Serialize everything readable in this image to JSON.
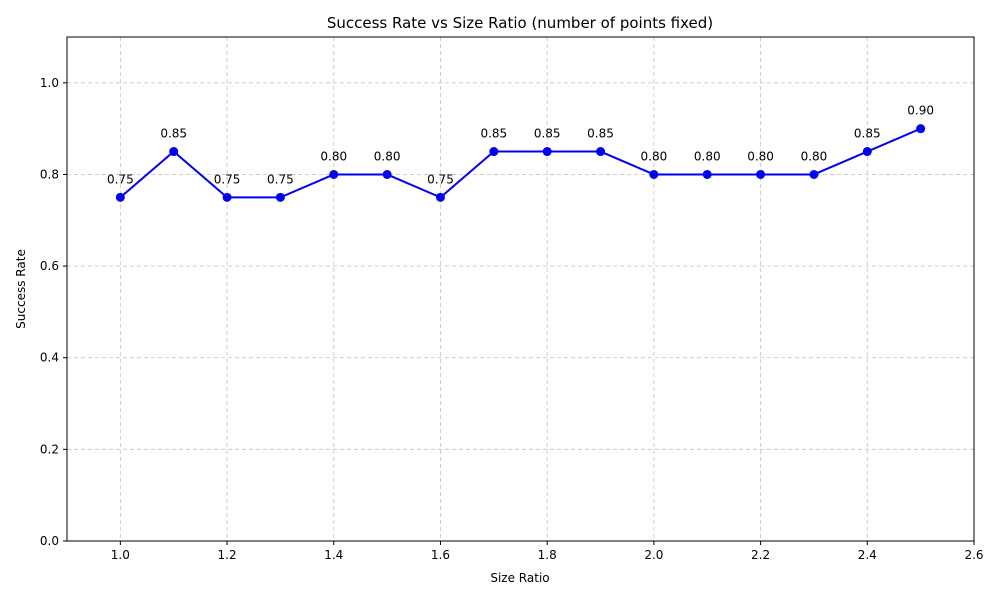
{
  "chart_data": {
    "type": "line",
    "title": "Success Rate vs Size Ratio (number of points fixed)",
    "xlabel": "Size Ratio",
    "ylabel": "Success Rate",
    "xlim": [
      0.9,
      2.6
    ],
    "ylim": [
      0.0,
      1.1
    ],
    "xticks": [
      1.0,
      1.2,
      1.4,
      1.6,
      1.8,
      2.0,
      2.2,
      2.4,
      2.6
    ],
    "xtick_labels": [
      "1.0",
      "1.2",
      "1.4",
      "1.6",
      "1.8",
      "2.0",
      "2.2",
      "2.4",
      "2.6"
    ],
    "yticks": [
      0.0,
      0.2,
      0.4,
      0.6,
      0.8,
      1.0
    ],
    "ytick_labels": [
      "0.0",
      "0.2",
      "0.4",
      "0.6",
      "0.8",
      "1.0"
    ],
    "grid": true,
    "legend": "none",
    "series": [
      {
        "color": "#0000ee",
        "marker": "circle",
        "x": [
          1.0,
          1.1,
          1.2,
          1.3,
          1.4,
          1.5,
          1.6,
          1.7,
          1.8,
          1.9,
          2.0,
          2.1,
          2.2,
          2.3,
          2.4,
          2.5
        ],
        "y": [
          0.75,
          0.85,
          0.75,
          0.75,
          0.8,
          0.8,
          0.75,
          0.85,
          0.85,
          0.85,
          0.8,
          0.8,
          0.8,
          0.8,
          0.85,
          0.9
        ],
        "labels": [
          "0.75",
          "0.85",
          "0.75",
          "0.75",
          "0.80",
          "0.80",
          "0.75",
          "0.85",
          "0.85",
          "0.85",
          "0.80",
          "0.80",
          "0.80",
          "0.80",
          "0.85",
          "0.90"
        ]
      }
    ]
  }
}
